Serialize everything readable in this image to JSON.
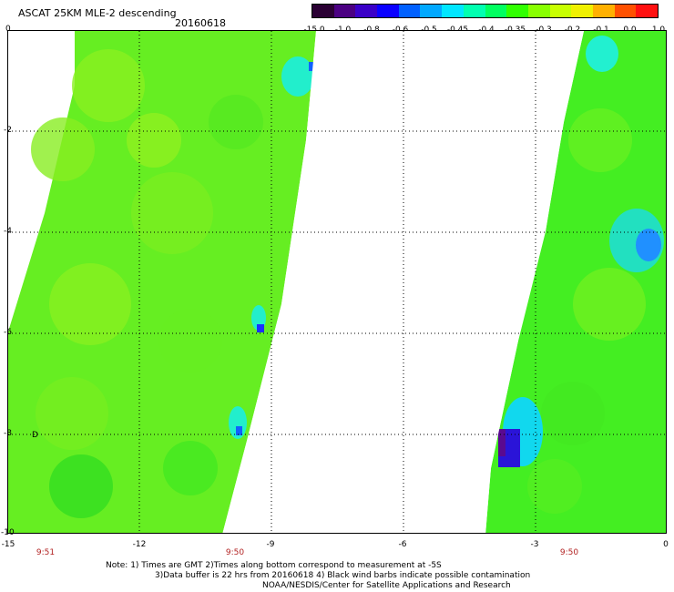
{
  "header": {
    "title": "ASCAT 25KM MLE-2 descending",
    "date": "20160618"
  },
  "colorbar": {
    "colors": [
      "#2a0033",
      "#4b0082",
      "#3a00c8",
      "#0a00ff",
      "#0060ff",
      "#00a8ff",
      "#00e6ff",
      "#00ffb0",
      "#00ff60",
      "#30ff00",
      "#88ff00",
      "#c8ff00",
      "#f0f000",
      "#ffb000",
      "#ff5000",
      "#ff1010"
    ],
    "labels": [
      "-15.0",
      "-1.0",
      "-0.8",
      "-0.6",
      "-0.5",
      "-0.45",
      "-0.4",
      "-0.35",
      "-0.3",
      "-0.2",
      "-0.1",
      "0.0",
      "1.0"
    ]
  },
  "axes": {
    "x_ticks": [
      "-15",
      "-12",
      "-9",
      "-6",
      "-3",
      "0"
    ],
    "y_ticks": [
      "0",
      "-2",
      "-4",
      "-6",
      "-8",
      "-10"
    ],
    "pass_times": [
      "9:51",
      "9:50",
      "9:50"
    ],
    "marker": "D"
  },
  "notes": {
    "line1": "Note: 1) Times are GMT 2)Times along bottom correspond to measurement at -5S",
    "line2": "3)Data buffer is 22 hrs from 20160618 4) Black wind barbs indicate possible contamination",
    "line3": "NOAA/NESDIS/Center for Satellite Applications and Research"
  }
}
